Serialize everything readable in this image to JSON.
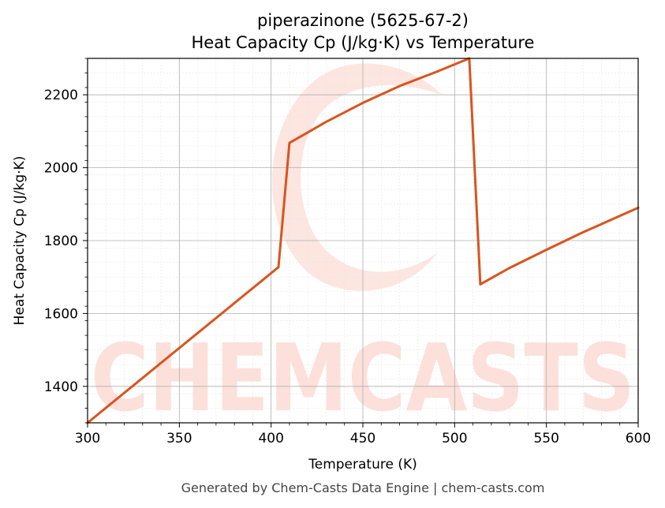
{
  "chart_data": {
    "type": "line",
    "title": "piperazinone (5625-67-2)",
    "subtitle": "Heat Capacity Cp (J/kg·K) vs Temperature",
    "xlabel": "Temperature (K)",
    "ylabel": "Heat Capacity Cp (J/kg·K)",
    "xlim": [
      300,
      600
    ],
    "ylim": [
      1300,
      2300
    ],
    "xticks": [
      300,
      350,
      400,
      450,
      500,
      550,
      600
    ],
    "yticks": [
      1400,
      1600,
      1800,
      2000,
      2200
    ],
    "grid": true,
    "line_color": "#d9541e",
    "series": [
      {
        "x": [
          300,
          404,
          410,
          430,
          450,
          470,
          490,
          508,
          514,
          530,
          550,
          570,
          600
        ],
        "values": [
          1300,
          1727,
          2068,
          2126,
          2178,
          2224,
          2263,
          2300,
          1680,
          1725,
          1775,
          1823,
          1890
        ]
      }
    ]
  },
  "watermark": {
    "text": "CHEMCASTS",
    "color": "#fde0da"
  },
  "footer": "Generated by Chem-Casts Data Engine | chem-casts.com"
}
